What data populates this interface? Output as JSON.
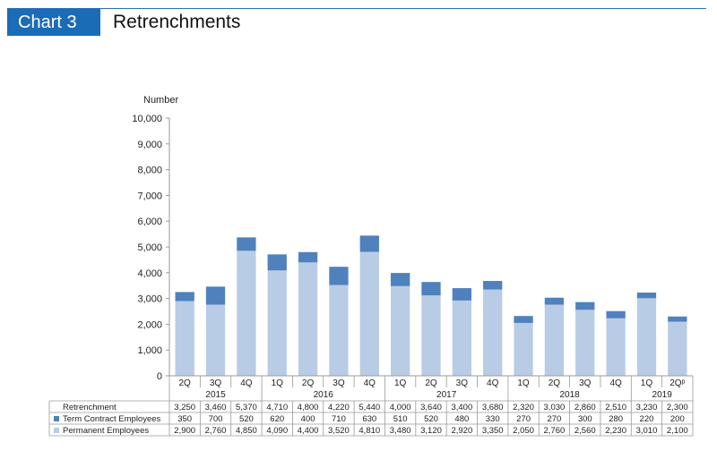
{
  "header": {
    "badge": "Chart 3",
    "title": "Retrenchments"
  },
  "colors": {
    "permanent": "#b9cce6",
    "term_contract": "#4f81bd",
    "accent": "#1b6cb6"
  },
  "chart_data": {
    "type": "bar",
    "stacked": true,
    "ylabel": "Number",
    "ylim": [
      0,
      10000
    ],
    "yticks": [
      "0",
      "1,000",
      "2,000",
      "3,000",
      "4,000",
      "5,000",
      "6,000",
      "7,000",
      "8,000",
      "9,000",
      "10,000"
    ],
    "categories": [
      "2Q",
      "3Q",
      "4Q",
      "1Q",
      "2Q",
      "3Q",
      "4Q",
      "1Q",
      "2Q",
      "3Q",
      "4Q",
      "1Q",
      "2Q",
      "3Q",
      "4Q",
      "1Q",
      "2Qᵖ"
    ],
    "years": [
      {
        "label": "2015",
        "span": 3
      },
      {
        "label": "2016",
        "span": 4
      },
      {
        "label": "2017",
        "span": 4
      },
      {
        "label": "2018",
        "span": 4
      },
      {
        "label": "2019",
        "span": 2
      }
    ],
    "series": [
      {
        "name": "Permanent Employees",
        "values": [
          2900,
          2760,
          4850,
          4090,
          4400,
          3520,
          4810,
          3480,
          3120,
          2920,
          3350,
          2050,
          2760,
          2560,
          2230,
          3010,
          2100
        ]
      },
      {
        "name": "Term Contract Employees",
        "values": [
          350,
          700,
          520,
          620,
          400,
          710,
          630,
          510,
          520,
          480,
          330,
          270,
          270,
          300,
          280,
          220,
          200
        ]
      }
    ],
    "table": {
      "total_label": "Retrenchment",
      "total": [
        "3,250",
        "3,460",
        "5,370",
        "4,710",
        "4,800",
        "4,220",
        "5,440",
        "4,000",
        "3,640",
        "3,400",
        "3,680",
        "2,320",
        "3,030",
        "2,860",
        "2,510",
        "3,230",
        "2,300"
      ],
      "term_label": "Term Contract Employees",
      "term": [
        "350",
        "700",
        "520",
        "620",
        "400",
        "710",
        "630",
        "510",
        "520",
        "480",
        "330",
        "270",
        "270",
        "300",
        "280",
        "220",
        "200"
      ],
      "perm_label": "Permanent Employees",
      "perm": [
        "2,900",
        "2,760",
        "4,850",
        "4,090",
        "4,400",
        "3,520",
        "4,810",
        "3,480",
        "3,120",
        "2,920",
        "3,350",
        "2,050",
        "2,760",
        "2,560",
        "2,230",
        "3,010",
        "2,100"
      ]
    },
    "legend": "data-table",
    "grid": false
  }
}
